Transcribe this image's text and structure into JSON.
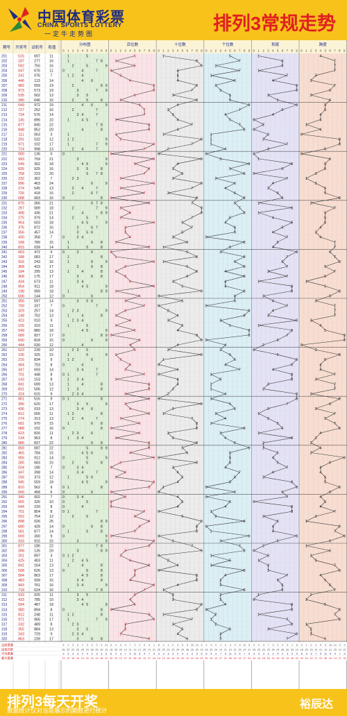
{
  "header": {
    "logo_cn": "中国体育彩票",
    "logo_en": "CHINA SPORTS LOTTERY",
    "logo_slogan": "一定牛走势图",
    "title": "排列3常规走势"
  },
  "table": {
    "col_period": "期号",
    "col_draw": "开奖号",
    "col_test": "试机号",
    "col_sum": "和值",
    "groups": [
      "分布图",
      "百位数",
      "十位数",
      "个位数",
      "和尾",
      "跨度"
    ],
    "digits": [
      "0",
      "1",
      "2",
      "3",
      "4",
      "5",
      "6",
      "7",
      "8",
      "9"
    ],
    "stat_labels": [
      "当前遗漏",
      "出现次数",
      "平均遗漏",
      "最大遗漏"
    ]
  },
  "colors": {
    "header_bg": "#f7c21a",
    "title_red": "#e02020",
    "logo_blue": "#1d2b84",
    "dist_bg": "#dff0d8",
    "hundreds_bg": "#fbe3e8",
    "tens_bg": "#ececec",
    "units_bg": "#dbf0f6",
    "tail_bg": "#e4e2f6",
    "span_bg": "#f9ddd0"
  },
  "draws": [
    {
      "period": "201",
      "num": "515",
      "test": "697",
      "sum": "11"
    },
    {
      "period": "202",
      "num": "187",
      "test": "277",
      "sum": "16"
    },
    {
      "period": "203",
      "num": "592",
      "test": "755",
      "sum": "16"
    },
    {
      "period": "204",
      "num": "047",
      "test": "676",
      "sum": "11"
    },
    {
      "period": "205",
      "num": "241",
      "test": "076",
      "sum": "7"
    },
    {
      "period": "206",
      "num": "446",
      "test": "113",
      "sum": "14"
    },
    {
      "period": "207",
      "num": "982",
      "test": "559",
      "sum": "19"
    },
    {
      "period": "208",
      "num": "973",
      "test": "573",
      "sum": "19"
    },
    {
      "period": "209",
      "num": "535",
      "test": "002",
      "sum": "13"
    },
    {
      "period": "210",
      "num": "285",
      "test": "646",
      "sum": "15"
    },
    {
      "period": "211",
      "num": "649",
      "test": "972",
      "sum": "19"
    },
    {
      "period": "212",
      "num": "727",
      "test": "252",
      "sum": "16"
    },
    {
      "period": "213",
      "num": "734",
      "test": "576",
      "sum": "14"
    },
    {
      "period": "214",
      "num": "145",
      "test": "896",
      "sum": "10"
    },
    {
      "period": "215",
      "num": "877",
      "test": "840",
      "sum": "22"
    },
    {
      "period": "216",
      "num": "848",
      "test": "852",
      "sum": "20"
    },
    {
      "period": "217",
      "num": "111",
      "test": "063",
      "sum": "3"
    },
    {
      "period": "218",
      "num": "291",
      "test": "532",
      "sum": "12"
    },
    {
      "period": "219",
      "num": "971",
      "test": "102",
      "sum": "17"
    },
    {
      "period": "220",
      "num": "724",
      "test": "998",
      "sum": "13"
    },
    {
      "period": "221",
      "num": "000",
      "test": "136",
      "sum": "0"
    },
    {
      "period": "222",
      "num": "993",
      "test": "759",
      "sum": "21"
    },
    {
      "period": "223",
      "num": "549",
      "test": "302",
      "sum": "18"
    },
    {
      "period": "224",
      "num": "835",
      "test": "925",
      "sum": "16"
    },
    {
      "period": "225",
      "num": "758",
      "test": "223",
      "sum": "20"
    },
    {
      "period": "226",
      "num": "232",
      "test": "362",
      "sum": "7"
    },
    {
      "period": "227",
      "num": "996",
      "test": "463",
      "sum": "24"
    },
    {
      "period": "228",
      "num": "274",
      "test": "545",
      "sum": "13"
    },
    {
      "period": "229",
      "num": "726",
      "test": "418",
      "sum": "15"
    },
    {
      "period": "230",
      "num": "088",
      "test": "993",
      "sum": "16"
    },
    {
      "period": "231",
      "num": "876",
      "test": "366",
      "sum": "21"
    },
    {
      "period": "232",
      "num": "297",
      "test": "089",
      "sum": "18"
    },
    {
      "period": "233",
      "num": "498",
      "test": "436",
      "sum": "21"
    },
    {
      "period": "234",
      "num": "275",
      "test": "979",
      "sum": "14"
    },
    {
      "period": "235",
      "num": "954",
      "test": "603",
      "sum": "18"
    },
    {
      "period": "236",
      "num": "376",
      "test": "872",
      "sum": "16"
    },
    {
      "period": "237",
      "num": "356",
      "test": "457",
      "sum": "14"
    },
    {
      "period": "238",
      "num": "430",
      "test": "358",
      "sum": "7"
    },
    {
      "period": "239",
      "num": "168",
      "test": "789",
      "sum": "15"
    },
    {
      "period": "240",
      "num": "815",
      "test": "039",
      "sum": "14"
    },
    {
      "period": "241",
      "num": "063",
      "test": "472",
      "sum": "9"
    },
    {
      "period": "242",
      "num": "188",
      "test": "083",
      "sum": "17"
    },
    {
      "period": "243",
      "num": "916",
      "test": "243",
      "sum": "16"
    },
    {
      "period": "244",
      "num": "368",
      "test": "419",
      "sum": "17"
    },
    {
      "period": "245",
      "num": "184",
      "test": "295",
      "sum": "13"
    },
    {
      "period": "246",
      "num": "368",
      "test": "175",
      "sum": "17"
    },
    {
      "period": "247",
      "num": "434",
      "test": "673",
      "sum": "11"
    },
    {
      "period": "248",
      "num": "954",
      "test": "911",
      "sum": "18"
    },
    {
      "period": "249",
      "num": "198",
      "test": "999",
      "sum": "18"
    },
    {
      "period": "250",
      "num": "606",
      "test": "144",
      "sum": "12"
    },
    {
      "period": "251",
      "num": "356",
      "test": "597",
      "sum": "14"
    },
    {
      "period": "252",
      "num": "700",
      "test": "337",
      "sum": "7"
    },
    {
      "period": "253",
      "num": "329",
      "test": "257",
      "sum": "14"
    },
    {
      "period": "254",
      "num": "148",
      "test": "762",
      "sum": "13"
    },
    {
      "period": "255",
      "num": "423",
      "test": "010",
      "sum": "9"
    },
    {
      "period": "256",
      "num": "155",
      "test": "310",
      "sum": "11"
    },
    {
      "period": "257",
      "num": "549",
      "test": "880",
      "sum": "18"
    },
    {
      "period": "258",
      "num": "089",
      "test": "827",
      "sum": "17"
    },
    {
      "period": "259",
      "num": "690",
      "test": "818",
      "sum": "15"
    },
    {
      "period": "260",
      "num": "444",
      "test": "030",
      "sum": "12"
    },
    {
      "period": "261",
      "num": "523",
      "test": "239",
      "sum": "10"
    },
    {
      "period": "262",
      "num": "195",
      "test": "325",
      "sum": "15"
    },
    {
      "period": "263",
      "num": "216",
      "test": "834",
      "sum": "9"
    },
    {
      "period": "264",
      "num": "404",
      "test": "703",
      "sum": "8"
    },
    {
      "period": "265",
      "num": "347",
      "test": "693",
      "sum": "14"
    },
    {
      "period": "266",
      "num": "701",
      "test": "448",
      "sum": "8"
    },
    {
      "period": "267",
      "num": "143",
      "test": "153",
      "sum": "8"
    },
    {
      "period": "268",
      "num": "841",
      "test": "699",
      "sum": "13"
    },
    {
      "period": "269",
      "num": "831",
      "test": "506",
      "sum": "12"
    },
    {
      "period": "270",
      "num": "324",
      "test": "615",
      "sum": "9"
    },
    {
      "period": "271",
      "num": "801",
      "test": "516",
      "sum": "9"
    },
    {
      "period": "272",
      "num": "395",
      "test": "620",
      "sum": "17"
    },
    {
      "period": "273",
      "num": "436",
      "test": "033",
      "sum": "13"
    },
    {
      "period": "274",
      "num": "812",
      "test": "506",
      "sum": "11"
    },
    {
      "period": "275",
      "num": "274",
      "test": "313",
      "sum": "13"
    },
    {
      "period": "276",
      "num": "681",
      "test": "970",
      "sum": "15"
    },
    {
      "period": "277",
      "num": "088",
      "test": "152",
      "sum": "16"
    },
    {
      "period": "278",
      "num": "623",
      "test": "826",
      "sum": "11"
    },
    {
      "period": "279",
      "num": "134",
      "test": "953",
      "sum": "8"
    },
    {
      "period": "280",
      "num": "886",
      "test": "837",
      "sum": "22"
    },
    {
      "period": "281",
      "num": "859",
      "test": "087",
      "sum": "22"
    },
    {
      "period": "282",
      "num": "465",
      "test": "784",
      "sum": "15"
    },
    {
      "period": "283",
      "num": "905",
      "test": "912",
      "sum": "14"
    },
    {
      "period": "284",
      "num": "285",
      "test": "683",
      "sum": "15"
    },
    {
      "period": "285",
      "num": "034",
      "test": "186",
      "sum": "7"
    },
    {
      "period": "286",
      "num": "347",
      "test": "398",
      "sum": "14"
    },
    {
      "period": "287",
      "num": "156",
      "test": "373",
      "sum": "12"
    },
    {
      "period": "288",
      "num": "945",
      "test": "559",
      "sum": "18"
    },
    {
      "period": "289",
      "num": "810",
      "test": "562",
      "sum": "9"
    },
    {
      "period": "290",
      "num": "006",
      "test": "458",
      "sum": "6"
    },
    {
      "period": "291",
      "num": "340",
      "test": "002",
      "sum": "7"
    },
    {
      "period": "292",
      "num": "055",
      "test": "326",
      "sum": "10"
    },
    {
      "period": "293",
      "num": "044",
      "test": "220",
      "sum": "8"
    },
    {
      "period": "294",
      "num": "701",
      "test": "854",
      "sum": "8"
    },
    {
      "period": "295",
      "num": "552",
      "test": "754",
      "sum": "12"
    },
    {
      "period": "296",
      "num": "898",
      "test": "026",
      "sum": "25"
    },
    {
      "period": "297",
      "num": "680",
      "test": "428",
      "sum": "14"
    },
    {
      "period": "298",
      "num": "581",
      "test": "877",
      "sum": "14"
    },
    {
      "period": "299",
      "num": "009",
      "test": "300",
      "sum": "9"
    },
    {
      "period": "300",
      "num": "933",
      "test": "915",
      "sum": "15"
    },
    {
      "period": "301",
      "num": "877",
      "test": "186",
      "sum": "22"
    },
    {
      "period": "302",
      "num": "398",
      "test": "135",
      "sum": "20"
    },
    {
      "period": "303",
      "num": "201",
      "test": "897",
      "sum": "3"
    },
    {
      "period": "304",
      "num": "425",
      "test": "403",
      "sum": "11"
    },
    {
      "period": "305",
      "num": "841",
      "test": "164",
      "sum": "13"
    },
    {
      "period": "306",
      "num": "508",
      "test": "626",
      "sum": "13"
    },
    {
      "period": "307",
      "num": "584",
      "test": "863",
      "sum": "17"
    },
    {
      "period": "308",
      "num": "483",
      "test": "939",
      "sum": "15"
    },
    {
      "period": "309",
      "num": "943",
      "test": "761",
      "sum": "16"
    },
    {
      "period": "310",
      "num": "718",
      "test": "624",
      "sum": "16"
    },
    {
      "period": "311",
      "num": "533",
      "test": "025",
      "sum": "11"
    },
    {
      "period": "312",
      "num": "433",
      "test": "785",
      "sum": "10"
    },
    {
      "period": "313",
      "num": "594",
      "test": "487",
      "sum": "18"
    },
    {
      "period": "314",
      "num": "080",
      "test": "894",
      "sum": "8"
    },
    {
      "period": "315",
      "num": "812",
      "test": "248",
      "sum": "11"
    },
    {
      "period": "316",
      "num": "971",
      "test": "966",
      "sum": "17"
    },
    {
      "period": "317",
      "num": "332",
      "test": "489",
      "sum": "8"
    },
    {
      "period": "318",
      "num": "355",
      "test": "884",
      "sum": "13"
    },
    {
      "period": "319",
      "num": "243",
      "test": "729",
      "sum": "9"
    },
    {
      "period": "320",
      "num": "863",
      "test": "239",
      "sum": "17"
    }
  ],
  "stats": {
    "missing": [
      "5",
      "2",
      "3",
      "0",
      "1",
      "0",
      "3",
      "0",
      "9",
      "21",
      "5",
      "4",
      "3",
      "4",
      "7",
      "3",
      "2",
      "0",
      "3",
      "1",
      "8",
      "4",
      "1",
      "0",
      "4",
      "5",
      "5",
      "15",
      "12"
    ],
    "count": [
      "28",
      "25",
      "29",
      "25",
      "34",
      "24",
      "38",
      "26",
      "30",
      "19",
      "18",
      "26",
      "29",
      "14",
      "21",
      "10",
      "21",
      "25",
      "14",
      "21"
    ],
    "avg": [
      "3",
      "3",
      "3",
      "3",
      "2",
      "4",
      "2",
      "3",
      "3",
      "5",
      "6",
      "4",
      "3",
      "7",
      "5",
      "11",
      "5",
      "4",
      "7",
      "5"
    ],
    "max": [
      "13",
      "13",
      "16",
      "16",
      "13",
      "20",
      "13",
      "14",
      "16",
      "22",
      "20",
      "19",
      "14",
      "27",
      "21",
      "35",
      "24",
      "14",
      "27",
      "24"
    ]
  },
  "footer": {
    "title": "排列3每天开奖",
    "note": "数据统计仅对当前展示的期数进行统计",
    "brand": "裕辰达"
  }
}
